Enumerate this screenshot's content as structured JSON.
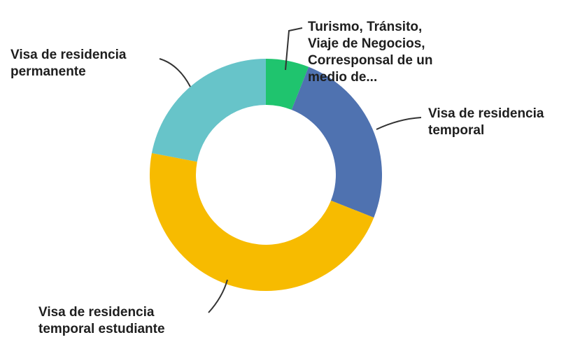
{
  "chart_data": {
    "type": "donut",
    "categories": [
      "Turismo, Tránsito, Viaje de Negocios, Corresponsal de un medio de...",
      "Visa de residencia temporal",
      "Visa de residencia temporal estudiante",
      "Visa de residencia permanente"
    ],
    "values": [
      6,
      25,
      47,
      22
    ],
    "colors": [
      "#1fc46e",
      "#4f72b0",
      "#f7bb00",
      "#67c4c9"
    ]
  }
}
